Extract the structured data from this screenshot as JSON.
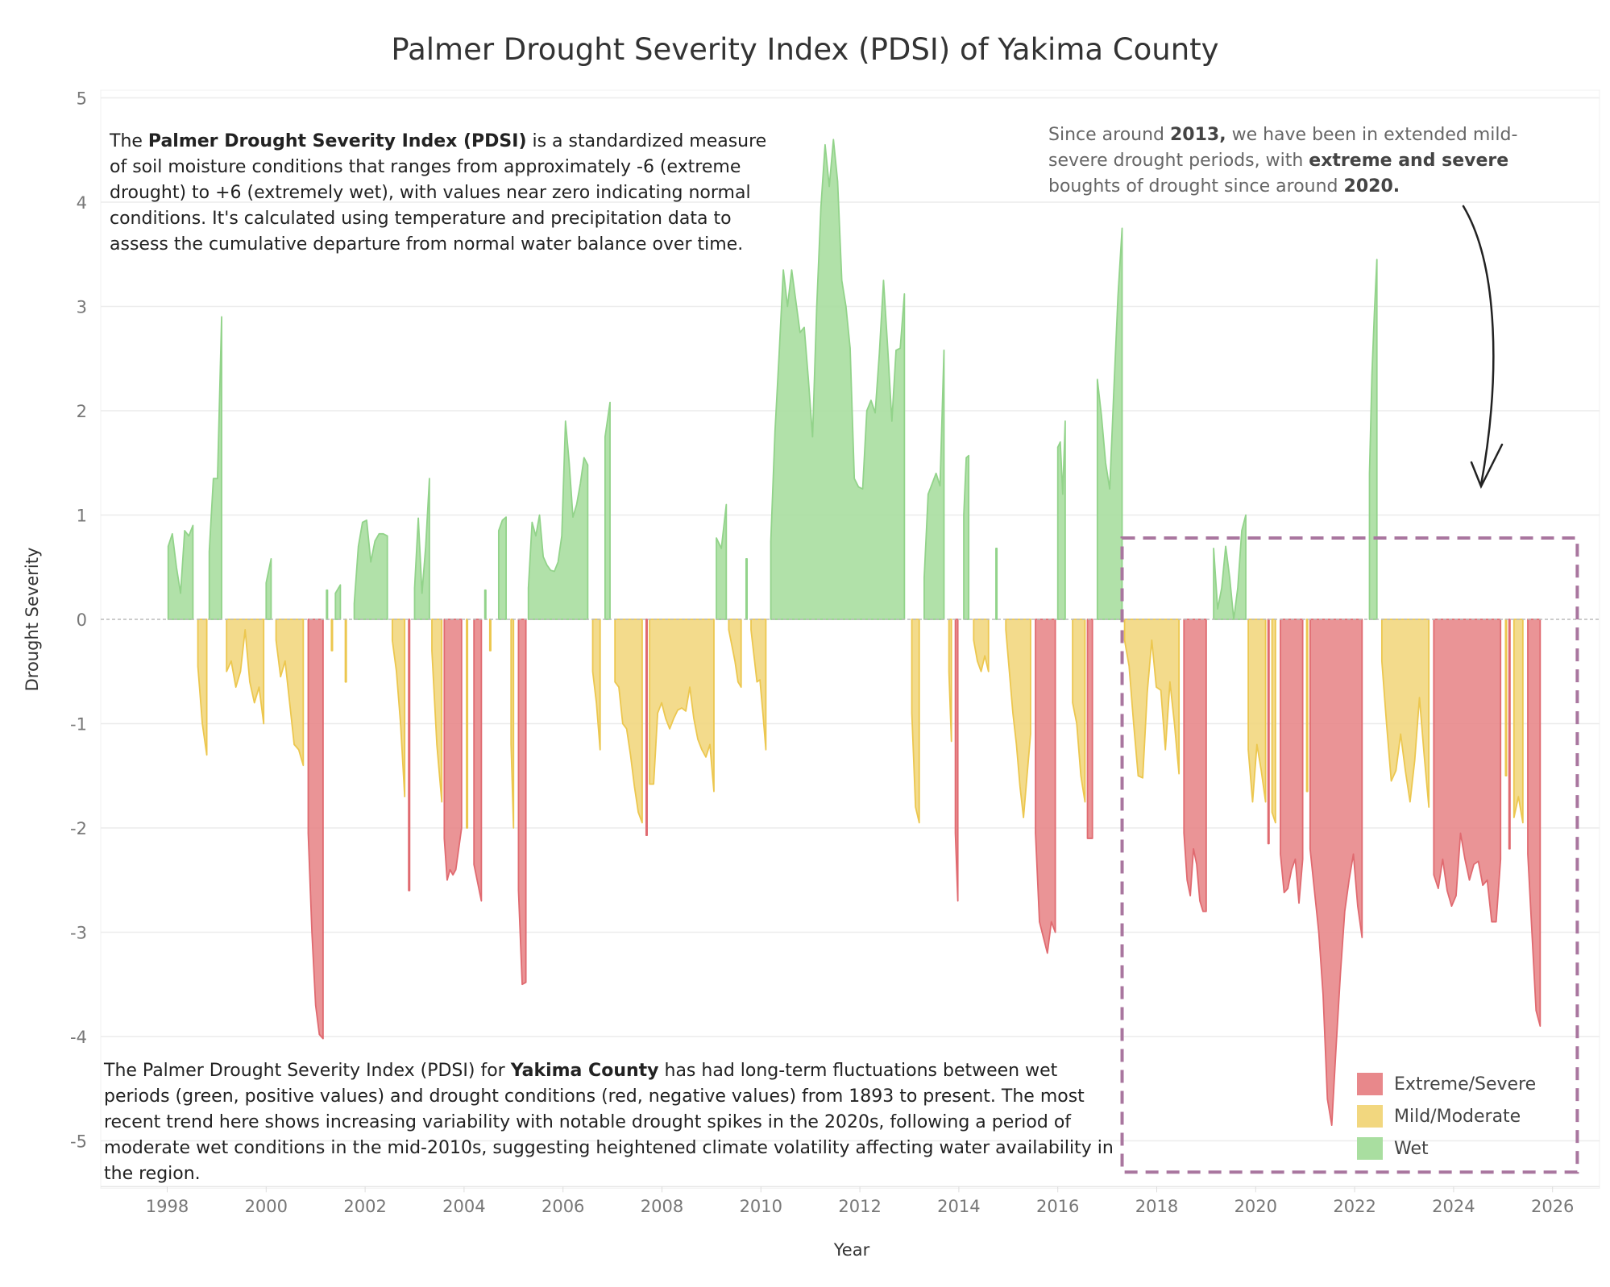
{
  "title": "Palmer Drought Severity Index (PDSI) of Yakima County",
  "annotations": {
    "left": {
      "pre": "The ",
      "bold": "Palmer Drought Severity Index (PDSI)",
      "post": " is a standardized measure of soil moisture conditions that ranges from approximately -6 (extreme drought) to +6 (extremely wet), with values near zero indicating normal conditions. It's calculated using temperature and precipitation data to assess the cumulative departure from normal water balance over time."
    },
    "right": {
      "t1": "Since around ",
      "b1": "2013,",
      "t2": " we have been in extended mild-severe drought periods, with ",
      "b2": "extreme and severe",
      "t3": " boughts of drought since around ",
      "b3": "2020."
    },
    "bottom": {
      "pre": "The Palmer Drought Severity Index (PDSI) for ",
      "bold": "Yakima County",
      "post": " has had long-term fluctuations between wet periods (green, positive values) and drought conditions (red, negative values) from 1893 to present. The most recent trend here shows increasing variability with notable drought spikes in the 2020s, following a period of moderate wet conditions in the mid-2010s, suggesting heightened climate volatility affecting water availability in the region."
    }
  },
  "colors": {
    "Extreme/Severe": "#e8888b",
    "Mild/Moderate": "#f2d77f",
    "Wet": "#a9dea0",
    "highlight_box": "#a9769f"
  },
  "chart_data": {
    "type": "area",
    "title": "Palmer Drought Severity Index (PDSI) of Yakima County",
    "xlabel": "Year",
    "ylabel": "Drought Severity",
    "xlim": [
      1996.6,
      2027
    ],
    "ylim": [
      -5.3,
      5.1
    ],
    "x_ticks": [
      "1998",
      "2000",
      "2002",
      "2004",
      "2006",
      "2008",
      "2010",
      "2012",
      "2014",
      "2016",
      "2018",
      "2020",
      "2022",
      "2024",
      "2026"
    ],
    "y_ticks": [
      "5",
      "4",
      "3",
      "2",
      "1",
      "0",
      "-1",
      "-2",
      "-3",
      "-4",
      "-5"
    ],
    "grid": true,
    "legend": {
      "placement": "bottom-right",
      "entries": [
        "Extreme/Severe",
        "Mild/Moderate",
        "Wet"
      ]
    },
    "highlight_box": {
      "x": [
        2017.3,
        2026.5
      ],
      "y": [
        -5.3,
        0.78
      ]
    },
    "episodes": [
      {
        "cat": "Wet",
        "start": 1998.02,
        "end": 1998.52,
        "values": [
          0.7,
          0.82,
          0.5,
          0.25,
          0.85,
          0.8,
          0.9
        ]
      },
      {
        "cat": "Mild/Moderate",
        "start": 1998.62,
        "end": 1998.8,
        "values": [
          -0.45,
          -1.0,
          -1.3
        ]
      },
      {
        "cat": "Wet",
        "start": 1998.85,
        "end": 1999.1,
        "values": [
          0.65,
          1.35,
          1.35,
          2.9
        ]
      },
      {
        "cat": "Mild/Moderate",
        "start": 1999.2,
        "end": 1999.95,
        "values": [
          -0.5,
          -0.4,
          -0.65,
          -0.5,
          -0.1,
          -0.6,
          -0.8,
          -0.65,
          -1.0
        ]
      },
      {
        "cat": "Wet",
        "start": 2000.0,
        "end": 2000.1,
        "values": [
          0.35,
          0.58
        ]
      },
      {
        "cat": "Mild/Moderate",
        "start": 2000.2,
        "end": 2000.75,
        "values": [
          -0.2,
          -0.55,
          -0.4,
          -0.8,
          -1.2,
          -1.25,
          -1.4
        ]
      },
      {
        "cat": "Extreme/Severe",
        "start": 2000.85,
        "end": 2001.15,
        "values": [
          -2.05,
          -3.0,
          -3.7,
          -3.98,
          -4.02
        ]
      },
      {
        "cat": "Wet",
        "start": 2001.22,
        "end": 2001.24,
        "values": [
          0.28
        ]
      },
      {
        "cat": "Mild/Moderate",
        "start": 2001.32,
        "end": 2001.34,
        "values": [
          -0.3
        ]
      },
      {
        "cat": "Wet",
        "start": 2001.4,
        "end": 2001.5,
        "values": [
          0.25,
          0.33
        ]
      },
      {
        "cat": "Mild/Moderate",
        "start": 2001.6,
        "end": 2001.62,
        "values": [
          -0.6
        ]
      },
      {
        "cat": "Wet",
        "start": 2001.78,
        "end": 2002.45,
        "values": [
          0.15,
          0.7,
          0.93,
          0.95,
          0.55,
          0.75,
          0.82,
          0.82,
          0.8
        ]
      },
      {
        "cat": "Mild/Moderate",
        "start": 2002.55,
        "end": 2002.8,
        "values": [
          -0.2,
          -0.5,
          -1.0,
          -1.7
        ]
      },
      {
        "cat": "Extreme/Severe",
        "start": 2002.88,
        "end": 2002.9,
        "values": [
          -2.6
        ]
      },
      {
        "cat": "Wet",
        "start": 2003.0,
        "end": 2003.3,
        "values": [
          0.3,
          0.97,
          0.25,
          0.7,
          1.35
        ]
      },
      {
        "cat": "Mild/Moderate",
        "start": 2003.35,
        "end": 2003.55,
        "values": [
          -0.3,
          -1.2,
          -1.75
        ]
      },
      {
        "cat": "Extreme/Severe",
        "start": 2003.6,
        "end": 2003.95,
        "values": [
          -2.1,
          -2.5,
          -2.4,
          -2.45,
          -2.4,
          -2.2,
          -2.0
        ]
      },
      {
        "cat": "Mild/Moderate",
        "start": 2004.05,
        "end": 2004.07,
        "values": [
          -2.0
        ]
      },
      {
        "cat": "Extreme/Severe",
        "start": 2004.2,
        "end": 2004.35,
        "values": [
          -2.35,
          -2.7
        ]
      },
      {
        "cat": "Wet",
        "start": 2004.42,
        "end": 2004.44,
        "values": [
          0.28
        ]
      },
      {
        "cat": "Mild/Moderate",
        "start": 2004.52,
        "end": 2004.54,
        "values": [
          -0.3
        ]
      },
      {
        "cat": "Wet",
        "start": 2004.7,
        "end": 2004.85,
        "values": [
          0.85,
          0.95,
          0.98
        ]
      },
      {
        "cat": "Mild/Moderate",
        "start": 2004.95,
        "end": 2005.0,
        "values": [
          -1.2,
          -2.0
        ]
      },
      {
        "cat": "Extreme/Severe",
        "start": 2005.1,
        "end": 2005.25,
        "values": [
          -2.6,
          -3.5,
          -3.48
        ]
      },
      {
        "cat": "Wet",
        "start": 2005.3,
        "end": 2006.5,
        "values": [
          0.3,
          0.93,
          0.8,
          1.0,
          0.6,
          0.52,
          0.47,
          0.46,
          0.55,
          0.8,
          1.9,
          1.5,
          0.98,
          1.1,
          1.3,
          1.55,
          1.48
        ]
      },
      {
        "cat": "Mild/Moderate",
        "start": 2006.6,
        "end": 2006.75,
        "values": [
          -0.5,
          -0.8,
          -1.25
        ]
      },
      {
        "cat": "Wet",
        "start": 2006.85,
        "end": 2006.95,
        "values": [
          1.75,
          2.08
        ]
      },
      {
        "cat": "Mild/Moderate",
        "start": 2007.05,
        "end": 2007.6,
        "values": [
          -0.6,
          -0.65,
          -1.0,
          -1.05,
          -1.3,
          -1.6,
          -1.85,
          -1.95
        ]
      },
      {
        "cat": "Extreme/Severe",
        "start": 2007.68,
        "end": 2007.7,
        "values": [
          -2.07
        ]
      },
      {
        "cat": "Mild/Moderate",
        "start": 2007.75,
        "end": 2009.05,
        "values": [
          -1.58,
          -1.58,
          -0.9,
          -0.8,
          -0.95,
          -1.05,
          -0.95,
          -0.87,
          -0.85,
          -0.88,
          -0.65,
          -0.95,
          -1.15,
          -1.25,
          -1.32,
          -1.2,
          -1.65
        ]
      },
      {
        "cat": "Wet",
        "start": 2009.1,
        "end": 2009.3,
        "values": [
          0.78,
          0.68,
          1.1
        ]
      },
      {
        "cat": "Mild/Moderate",
        "start": 2009.35,
        "end": 2009.6,
        "values": [
          -0.1,
          -0.25,
          -0.4,
          -0.6,
          -0.65
        ]
      },
      {
        "cat": "Wet",
        "start": 2009.7,
        "end": 2009.72,
        "values": [
          0.58
        ]
      },
      {
        "cat": "Mild/Moderate",
        "start": 2009.8,
        "end": 2010.1,
        "values": [
          -0.1,
          -0.35,
          -0.6,
          -0.58,
          -0.9,
          -1.25
        ]
      },
      {
        "cat": "Wet",
        "start": 2010.2,
        "end": 2012.9,
        "values": [
          0.75,
          1.8,
          2.55,
          3.35,
          3.0,
          3.35,
          3.05,
          2.75,
          2.8,
          2.3,
          1.75,
          3.0,
          3.95,
          4.55,
          4.15,
          4.6,
          4.2,
          3.25,
          3.0,
          2.6,
          1.35,
          1.27,
          1.25,
          2.0,
          2.1,
          1.98,
          2.55,
          3.25,
          2.6,
          1.9,
          2.58,
          2.6,
          3.12
        ]
      },
      {
        "cat": "Mild/Moderate",
        "start": 2013.05,
        "end": 2013.2,
        "values": [
          -0.9,
          -1.8,
          -1.95
        ]
      },
      {
        "cat": "Wet",
        "start": 2013.3,
        "end": 2013.7,
        "values": [
          0.4,
          1.2,
          1.3,
          1.4,
          1.28,
          2.58
        ]
      },
      {
        "cat": "Mild/Moderate",
        "start": 2013.8,
        "end": 2013.85,
        "values": [
          -0.5,
          -1.17
        ]
      },
      {
        "cat": "Extreme/Severe",
        "start": 2013.93,
        "end": 2013.98,
        "values": [
          -2.05,
          -2.7
        ]
      },
      {
        "cat": "Wet",
        "start": 2014.1,
        "end": 2014.2,
        "values": [
          1.0,
          1.55,
          1.57
        ]
      },
      {
        "cat": "Mild/Moderate",
        "start": 2014.3,
        "end": 2014.6,
        "values": [
          -0.2,
          -0.4,
          -0.5,
          -0.35,
          -0.5
        ]
      },
      {
        "cat": "Wet",
        "start": 2014.75,
        "end": 2014.77,
        "values": [
          0.68
        ]
      },
      {
        "cat": "Mild/Moderate",
        "start": 2014.95,
        "end": 2015.45,
        "values": [
          -0.1,
          -0.5,
          -0.9,
          -1.2,
          -1.6,
          -1.9,
          -1.5,
          -1.1
        ]
      },
      {
        "cat": "Extreme/Severe",
        "start": 2015.55,
        "end": 2015.95,
        "values": [
          -2.05,
          -2.9,
          -3.05,
          -3.2,
          -2.9,
          -3.0
        ]
      },
      {
        "cat": "Wet",
        "start": 2016.0,
        "end": 2016.15,
        "values": [
          1.65,
          1.7,
          1.2,
          1.9
        ]
      },
      {
        "cat": "Mild/Moderate",
        "start": 2016.3,
        "end": 2016.55,
        "values": [
          -0.8,
          -1.0,
          -1.5,
          -1.75
        ]
      },
      {
        "cat": "Extreme/Severe",
        "start": 2016.6,
        "end": 2016.7,
        "values": [
          -2.1,
          -2.1
        ]
      },
      {
        "cat": "Wet",
        "start": 2016.8,
        "end": 2017.3,
        "values": [
          2.3,
          1.95,
          1.5,
          1.25,
          2.2,
          3.1,
          3.75
        ]
      },
      {
        "cat": "Mild/Moderate",
        "start": 2017.35,
        "end": 2018.45,
        "values": [
          -0.2,
          -0.45,
          -1.0,
          -1.5,
          -1.52,
          -0.7,
          -0.2,
          -0.65,
          -0.68,
          -1.25,
          -0.6,
          -1.0,
          -1.48
        ]
      },
      {
        "cat": "Extreme/Severe",
        "start": 2018.55,
        "end": 2019.0,
        "values": [
          -2.05,
          -2.5,
          -2.65,
          -2.2,
          -2.35,
          -2.7,
          -2.8,
          -2.8
        ]
      },
      {
        "cat": "Wet",
        "start": 2019.15,
        "end": 2019.8,
        "values": [
          0.68,
          0.1,
          0.3,
          0.7,
          0.4,
          0.0,
          0.3,
          0.85,
          1.0
        ]
      },
      {
        "cat": "Mild/Moderate",
        "start": 2019.85,
        "end": 2020.2,
        "values": [
          -1.25,
          -1.75,
          -1.2,
          -1.45,
          -1.75
        ]
      },
      {
        "cat": "Extreme/Severe",
        "start": 2020.25,
        "end": 2020.27,
        "values": [
          -2.15
        ]
      },
      {
        "cat": "Mild/Moderate",
        "start": 2020.33,
        "end": 2020.4,
        "values": [
          -1.85,
          -1.95
        ]
      },
      {
        "cat": "Extreme/Severe",
        "start": 2020.5,
        "end": 2020.95,
        "values": [
          -2.25,
          -2.62,
          -2.58,
          -2.4,
          -2.3,
          -2.72,
          -2.3
        ]
      },
      {
        "cat": "Mild/Moderate",
        "start": 2021.03,
        "end": 2021.05,
        "values": [
          -1.65
        ]
      },
      {
        "cat": "Extreme/Severe",
        "start": 2021.1,
        "end": 2022.15,
        "values": [
          -2.2,
          -2.6,
          -3.0,
          -3.6,
          -4.6,
          -4.85,
          -4.1,
          -3.4,
          -2.8,
          -2.5,
          -2.25,
          -2.75,
          -3.05
        ]
      },
      {
        "cat": "Wet",
        "start": 2022.3,
        "end": 2022.45,
        "values": [
          1.4,
          2.35,
          2.95,
          3.45
        ]
      },
      {
        "cat": "Mild/Moderate",
        "start": 2022.55,
        "end": 2023.5,
        "values": [
          -0.4,
          -1.0,
          -1.55,
          -1.45,
          -1.1,
          -1.45,
          -1.75,
          -1.35,
          -0.75,
          -1.3,
          -1.8
        ]
      },
      {
        "cat": "Extreme/Severe",
        "start": 2023.6,
        "end": 2024.95,
        "values": [
          -2.45,
          -2.58,
          -2.3,
          -2.6,
          -2.75,
          -2.65,
          -2.05,
          -2.3,
          -2.5,
          -2.35,
          -2.32,
          -2.55,
          -2.5,
          -2.9,
          -2.9,
          -2.3
        ]
      },
      {
        "cat": "Mild/Moderate",
        "start": 2025.05,
        "end": 2025.07,
        "values": [
          -1.5
        ]
      },
      {
        "cat": "Extreme/Severe",
        "start": 2025.12,
        "end": 2025.14,
        "values": [
          -2.2
        ]
      },
      {
        "cat": "Mild/Moderate",
        "start": 2025.22,
        "end": 2025.4,
        "values": [
          -1.9,
          -1.7,
          -1.95
        ]
      },
      {
        "cat": "Extreme/Severe",
        "start": 2025.5,
        "end": 2025.75,
        "values": [
          -2.25,
          -3.0,
          -3.75,
          -3.9
        ]
      }
    ]
  }
}
